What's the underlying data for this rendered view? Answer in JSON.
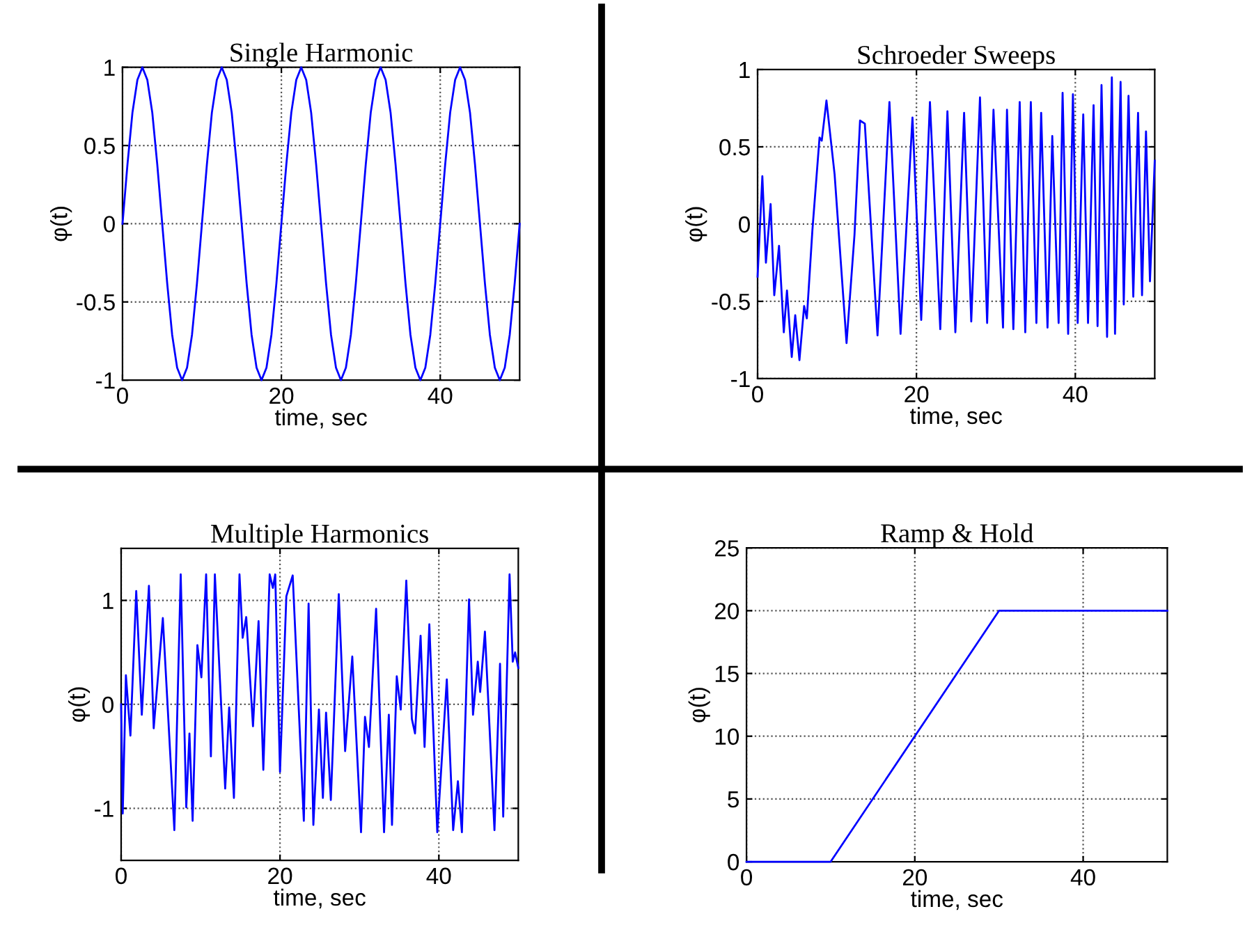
{
  "chart_data": [
    {
      "type": "line",
      "title": "Single Harmonic",
      "xlabel": "time, sec",
      "ylabel": "φ(t)",
      "xlim": [
        0,
        50
      ],
      "ylim": [
        -1,
        1
      ],
      "xticks": [
        0,
        20,
        40
      ],
      "yticks": [
        -1,
        -0.5,
        0,
        0.5,
        1
      ],
      "grid": true,
      "line_style": "solid",
      "series": [
        {
          "color": "#0000ff",
          "x": [
            0,
            0.625,
            1.25,
            1.875,
            2.5,
            3.125,
            3.75,
            4.375,
            5,
            5.625,
            6.25,
            6.875,
            7.5,
            8.125,
            8.75,
            9.375,
            10,
            10.625,
            11.25,
            11.875,
            12.5,
            13.125,
            13.75,
            14.375,
            15,
            15.625,
            16.25,
            16.875,
            17.5,
            18.125,
            18.75,
            19.375,
            20,
            20.625,
            21.25,
            21.875,
            22.5,
            23.125,
            23.75,
            24.375,
            25,
            25.625,
            26.25,
            26.875,
            27.5,
            28.125,
            28.75,
            29.375,
            30,
            30.625,
            31.25,
            31.875,
            32.5,
            33.125,
            33.75,
            34.375,
            35,
            35.625,
            36.25,
            36.875,
            37.5,
            38.125,
            38.75,
            39.375,
            40,
            40.625,
            41.25,
            41.875,
            42.5,
            43.125,
            43.75,
            44.375,
            45,
            45.625,
            46.25,
            46.875,
            47.5,
            48.125,
            48.75,
            49.375,
            50
          ],
          "values": [
            0,
            0.38,
            0.71,
            0.92,
            1,
            0.92,
            0.71,
            0.38,
            0,
            -0.38,
            -0.71,
            -0.92,
            -1,
            -0.92,
            -0.71,
            -0.38,
            0,
            0.38,
            0.71,
            0.92,
            1,
            0.92,
            0.71,
            0.38,
            0,
            -0.38,
            -0.71,
            -0.92,
            -1,
            -0.92,
            -0.71,
            -0.38,
            0,
            0.38,
            0.71,
            0.92,
            1,
            0.92,
            0.71,
            0.38,
            0,
            -0.38,
            -0.71,
            -0.92,
            -1,
            -0.92,
            -0.71,
            -0.38,
            0,
            0.38,
            0.71,
            0.92,
            1,
            0.92,
            0.71,
            0.38,
            0,
            -0.38,
            -0.71,
            -0.92,
            -1,
            -0.92,
            -0.71,
            -0.38,
            0,
            0.38,
            0.71,
            0.92,
            1,
            0.92,
            0.71,
            0.38,
            0,
            -0.38,
            -0.71,
            -0.92,
            -1,
            -0.92,
            -0.71,
            -0.38,
            0
          ]
        }
      ]
    },
    {
      "type": "line",
      "title": "Schroeder Sweeps",
      "xlabel": "time, sec",
      "ylabel": "φ(t)",
      "xlim": [
        0,
        50
      ],
      "ylim": [
        -1,
        1
      ],
      "xticks": [
        0,
        20,
        40
      ],
      "yticks": [
        -1,
        -0.5,
        0,
        0.5,
        1
      ],
      "grid": true,
      "line_style": "solid",
      "series": [
        {
          "color": "#0000ff",
          "x": [
            0,
            0.6,
            1.05,
            1.64,
            2.1,
            2.7,
            3.3,
            3.7,
            4.3,
            4.74,
            5.27,
            5.86,
            6.2,
            6.9,
            7.8,
            8.08,
            8.67,
            9.7,
            11.2,
            12.2,
            12.9,
            13.5,
            15.1,
            16.6,
            18.0,
            19.5,
            20.6,
            21.7,
            23.0,
            23.9,
            24.9,
            26.0,
            26.9,
            28.0,
            28.9,
            29.7,
            30.9,
            31.4,
            32.2,
            33.0,
            33.7,
            34.4,
            35.1,
            35.7,
            36.5,
            37.1,
            37.9,
            38.4,
            39.1,
            39.7,
            40.3,
            41.0,
            41.6,
            42.3,
            42.8,
            43.3,
            44.0,
            44.6,
            45.0,
            45.7,
            46.1,
            46.7,
            47.3,
            47.9,
            48.4,
            48.9,
            49.4,
            50
          ],
          "values": [
            -0.34,
            0.31,
            -0.25,
            0.13,
            -0.46,
            -0.14,
            -0.7,
            -0.43,
            -0.86,
            -0.59,
            -0.88,
            -0.53,
            -0.61,
            -0.04,
            0.56,
            0.54,
            0.8,
            0.32,
            -0.77,
            -0.07,
            0.67,
            0.65,
            -0.72,
            0.79,
            -0.71,
            0.69,
            -0.62,
            0.79,
            -0.68,
            0.73,
            -0.7,
            0.72,
            -0.63,
            0.82,
            -0.64,
            0.74,
            -0.67,
            0.74,
            -0.68,
            0.79,
            -0.7,
            0.79,
            -0.64,
            0.72,
            -0.67,
            0.57,
            -0.64,
            0.85,
            -0.71,
            0.84,
            -0.64,
            0.71,
            -0.64,
            0.77,
            -0.66,
            0.9,
            -0.73,
            0.95,
            -0.71,
            0.92,
            -0.52,
            0.83,
            -0.47,
            0.72,
            -0.46,
            0.6,
            -0.37,
            0.41
          ]
        }
      ]
    },
    {
      "type": "line",
      "title": "Multiple Harmonics",
      "xlabel": "time, sec",
      "ylabel": "φ(t)",
      "xlim": [
        0,
        50
      ],
      "ylim": [
        -1.5,
        1.5
      ],
      "xticks": [
        0,
        20,
        40
      ],
      "yticks": [
        -1,
        0,
        1
      ],
      "grid": true,
      "line_style": "solid",
      "series": [
        {
          "color": "#0000ff",
          "x": [
            0,
            0.2,
            0.6,
            1.17,
            1.9,
            2.6,
            3.5,
            4.1,
            5.25,
            6.7,
            7.5,
            8.2,
            8.6,
            9.0,
            9.6,
            10.1,
            10.7,
            11.3,
            11.8,
            13.1,
            13.6,
            14.2,
            14.9,
            15.3,
            15.75,
            16.6,
            17.3,
            17.9,
            18.7,
            19.1,
            19.4,
            20.0,
            20.8,
            21.6,
            23.0,
            23.6,
            24.2,
            24.9,
            25.4,
            25.8,
            26.4,
            27.4,
            28.2,
            29.1,
            30.2,
            30.7,
            31.2,
            32.1,
            33.1,
            33.7,
            34.1,
            34.7,
            35.2,
            35.9,
            36.6,
            37.0,
            37.7,
            38.2,
            38.8,
            39.8,
            41.0,
            41.8,
            42.4,
            42.9,
            43.8,
            44.3,
            44.9,
            45.2,
            45.8,
            47.0,
            47.7,
            48.1,
            48.9,
            49.3,
            49.6,
            50
          ],
          "values": [
            0,
            -1.05,
            0.28,
            -0.3,
            1.09,
            -0.1,
            1.14,
            -0.23,
            0.83,
            -1.21,
            1.25,
            -0.99,
            -0.28,
            -1.12,
            0.57,
            0.26,
            1.25,
            -0.5,
            1.25,
            -0.81,
            -0.03,
            -0.9,
            1.25,
            0.64,
            0.84,
            -0.21,
            0.8,
            -0.63,
            1.25,
            1.12,
            1.25,
            -0.65,
            1.04,
            1.24,
            -1.12,
            0.97,
            -1.16,
            -0.05,
            -0.9,
            -0.08,
            -0.92,
            1.06,
            -0.45,
            0.46,
            -1.23,
            -0.12,
            -0.41,
            0.92,
            -1.23,
            -0.1,
            -1.16,
            0.27,
            -0.05,
            1.19,
            -0.14,
            -0.28,
            0.66,
            -0.41,
            0.77,
            -1.23,
            0.24,
            -1.21,
            -0.74,
            -1.23,
            1.01,
            -0.1,
            0.41,
            0.12,
            0.7,
            -1.21,
            0.39,
            -1.08,
            1.25,
            0.41,
            0.5,
            0.35
          ]
        }
      ]
    },
    {
      "type": "line",
      "title": "Ramp & Hold",
      "xlabel": "time, sec",
      "ylabel": "φ(t)",
      "xlim": [
        0,
        50
      ],
      "ylim": [
        0,
        25
      ],
      "xticks": [
        0,
        20,
        40
      ],
      "yticks": [
        0,
        5,
        10,
        15,
        20,
        25
      ],
      "grid": true,
      "line_style": "solid",
      "series": [
        {
          "color": "#0000ff",
          "x": [
            0,
            10,
            30,
            50
          ],
          "values": [
            0,
            0,
            20,
            20
          ]
        }
      ]
    }
  ]
}
